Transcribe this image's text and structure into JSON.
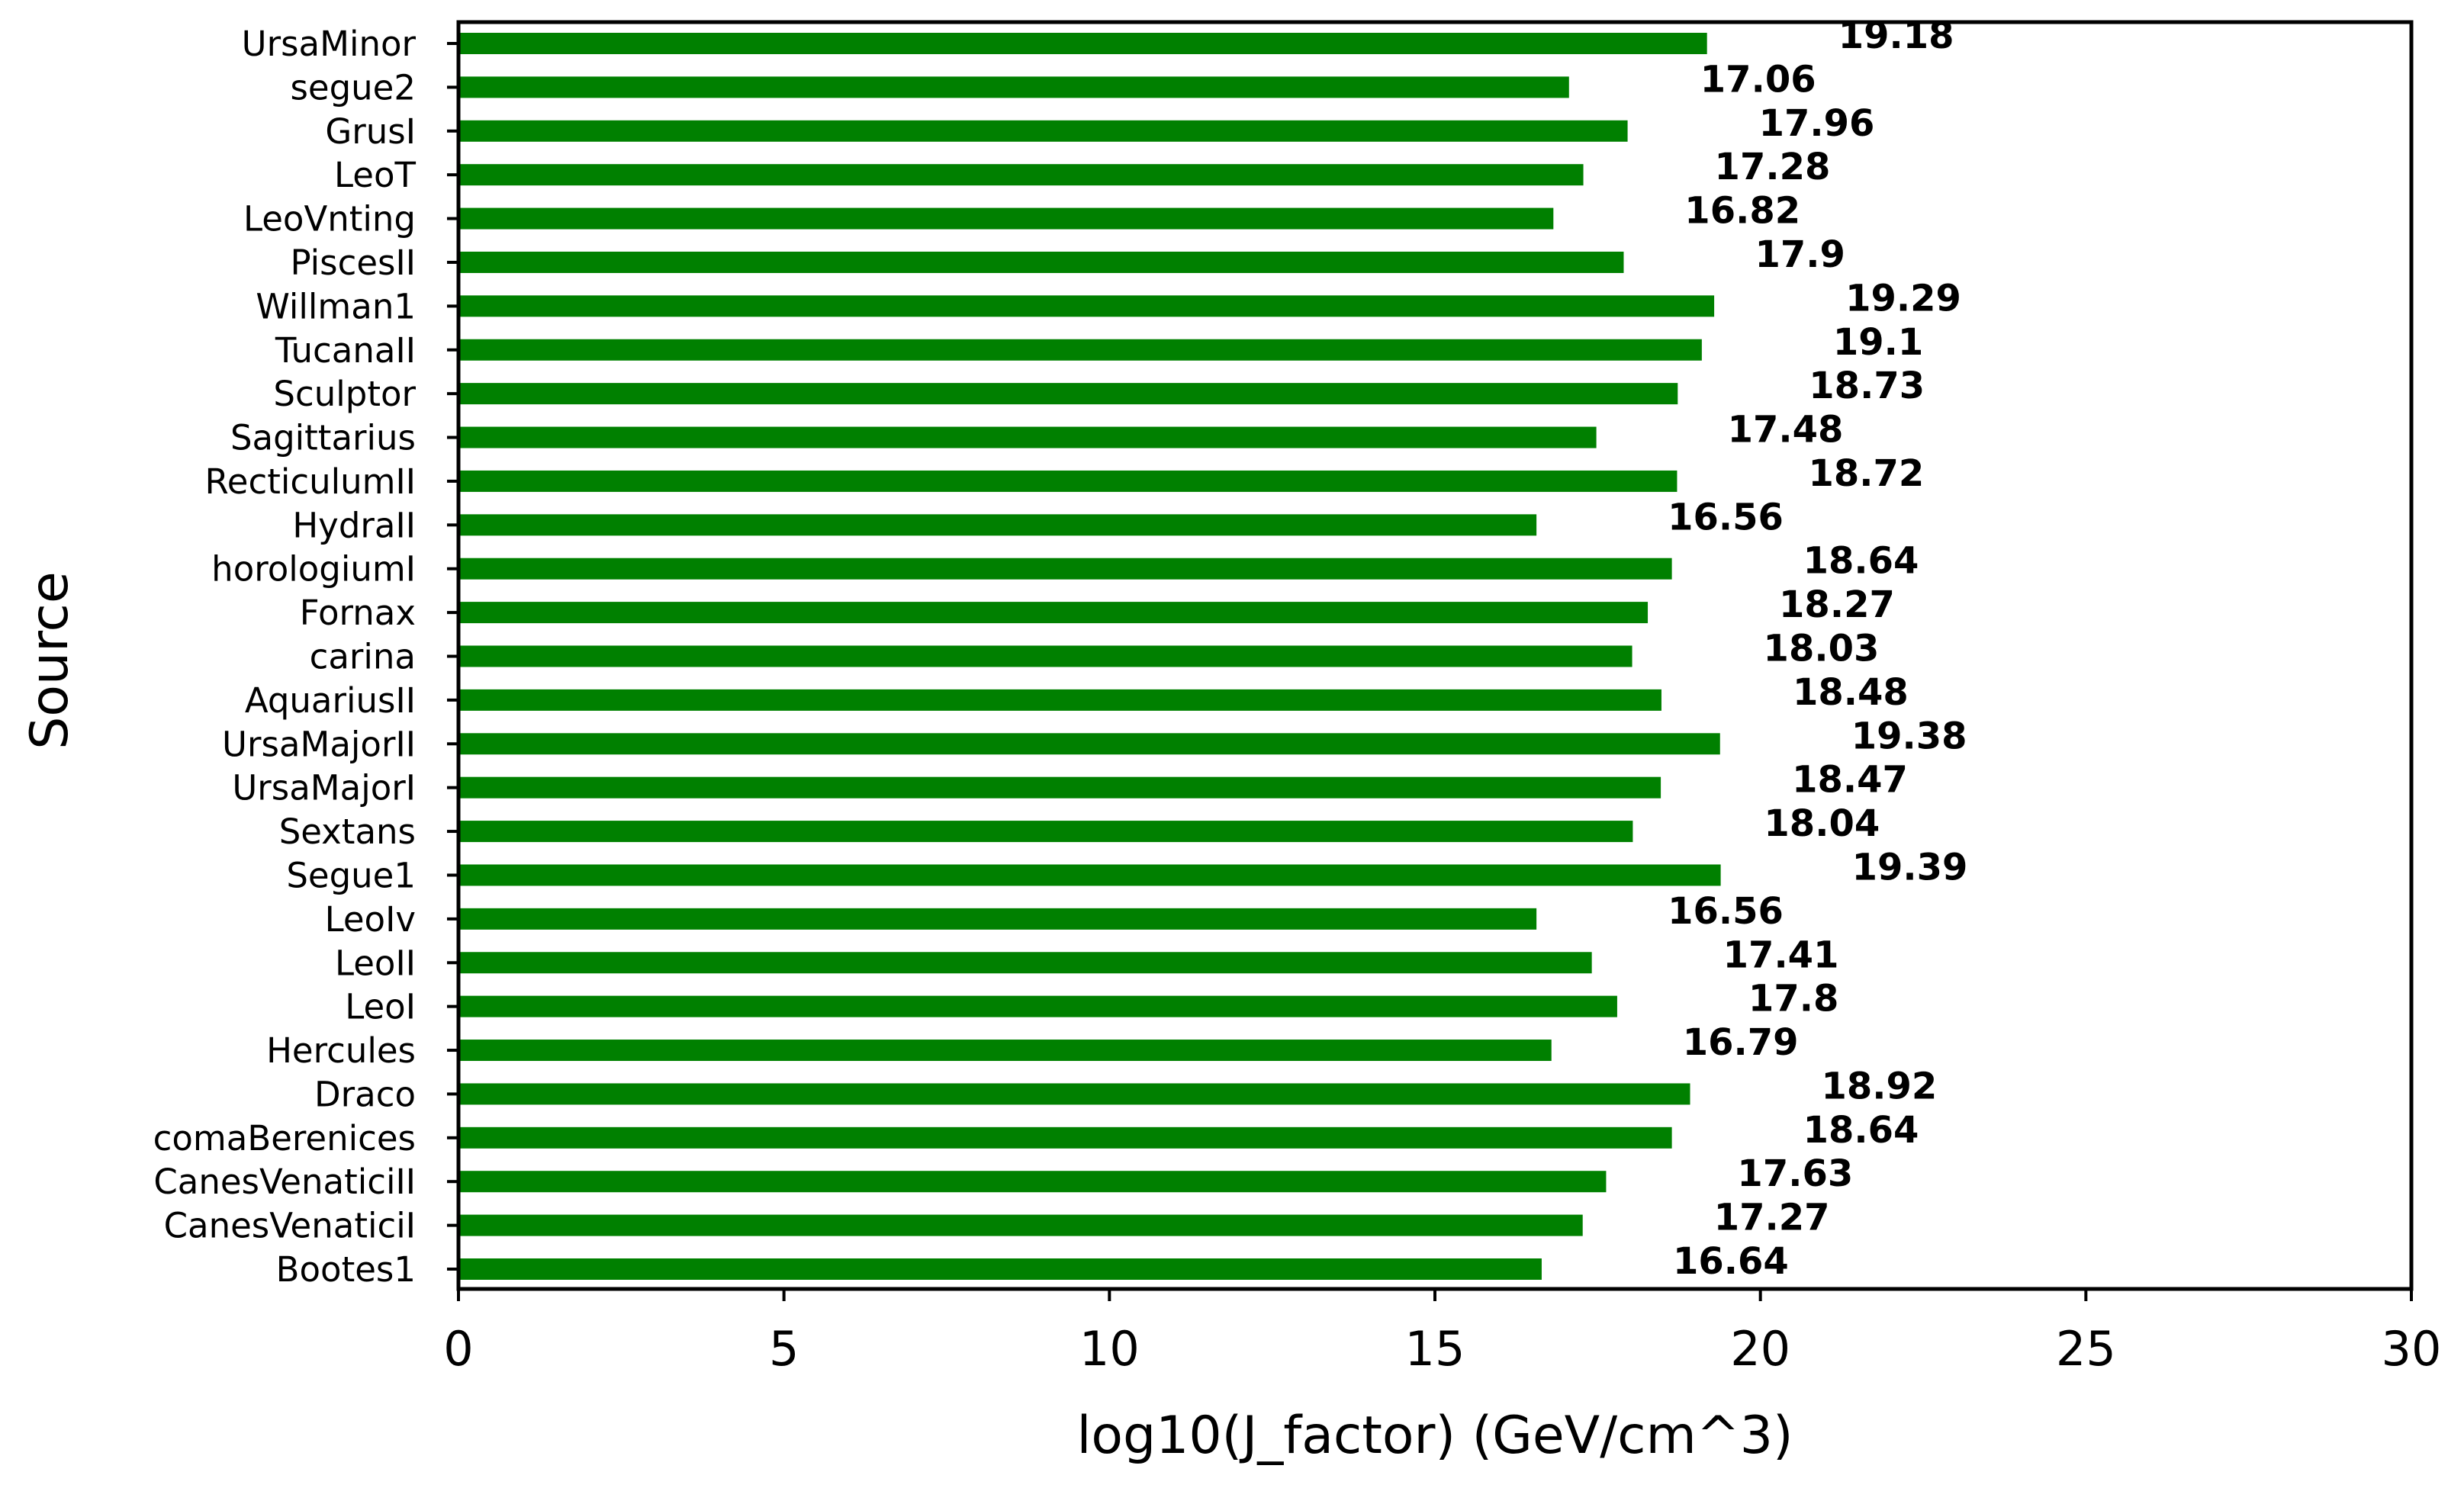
{
  "chart_data": {
    "type": "bar",
    "orientation": "horizontal",
    "categories": [
      "UrsaMinor",
      "segue2",
      "GrusI",
      "LeoT",
      "LeoVnting",
      "PiscesII",
      "Willman1",
      "TucanaII",
      "Sculptor",
      "Sagittarius",
      "RecticulumII",
      "HydraII",
      "horologiumI",
      "Fornax",
      "carina",
      "AquariusII",
      "UrsaMajorII",
      "UrsaMajorI",
      "Sextans",
      "Segue1",
      "LeoIv",
      "LeoII",
      "LeoI",
      "Hercules",
      "Draco",
      "comaBerenices",
      "CanesVenaticiII",
      "CanesVenaticiI",
      "Bootes1"
    ],
    "values": [
      19.18,
      17.06,
      17.96,
      17.28,
      16.82,
      17.9,
      19.29,
      19.1,
      18.73,
      17.48,
      18.72,
      16.56,
      18.64,
      18.27,
      18.03,
      18.48,
      19.38,
      18.47,
      18.04,
      19.39,
      16.56,
      17.41,
      17.8,
      16.79,
      18.92,
      18.64,
      17.63,
      17.27,
      16.64
    ],
    "data_labels": [
      "19.18",
      "17.06",
      "17.96",
      "17.28",
      "16.82",
      "17.9",
      "19.29",
      "19.1",
      "18.73",
      "17.48",
      "18.72",
      "16.56",
      "18.64",
      "18.27",
      "18.03",
      "18.48",
      "19.38",
      "18.47",
      "18.04",
      "19.39",
      "16.56",
      "17.41",
      "17.8",
      "16.79",
      "18.92",
      "18.64",
      "17.63",
      "17.27",
      "16.64"
    ],
    "xlabel": "log10(J_factor) (GeV/cm^3)",
    "ylabel": "Source",
    "xlim": [
      0,
      30
    ],
    "xticks": [
      0,
      5,
      10,
      15,
      20,
      25,
      30
    ],
    "xtick_labels": [
      "0",
      "5",
      "10",
      "15",
      "20",
      "25",
      "30"
    ],
    "bar_color": "#008000",
    "grid": false,
    "legend": "none"
  }
}
